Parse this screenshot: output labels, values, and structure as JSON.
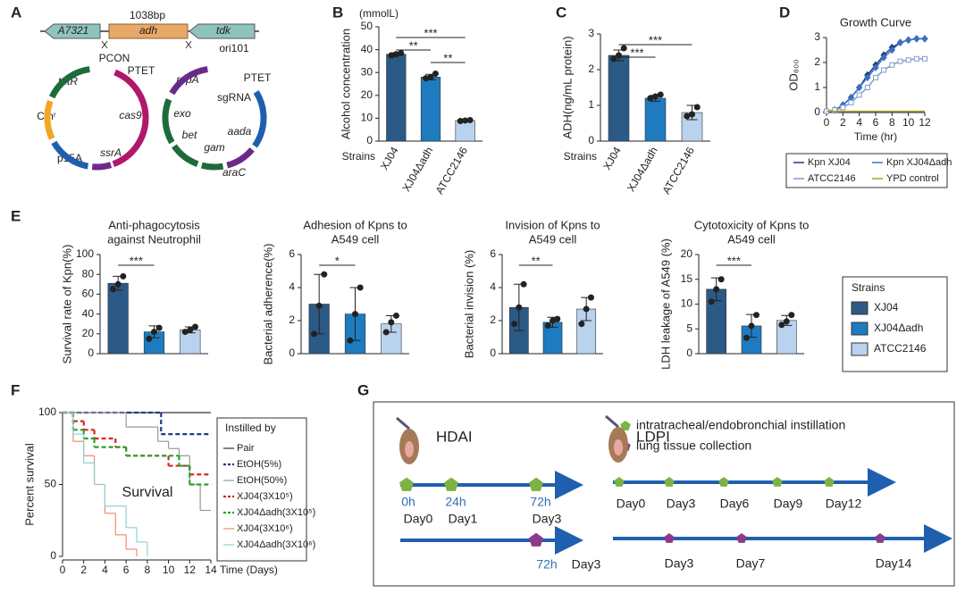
{
  "panel_labels": [
    "A",
    "B",
    "C",
    "D",
    "E",
    "F",
    "G"
  ],
  "panel_a": {
    "size": "1038bp",
    "genes": [
      "A7321",
      "adh",
      "tdk"
    ],
    "plasmid_1": [
      "PCON",
      "PTET",
      "tetR",
      "Cmʳ",
      "cas9",
      "p15A",
      "ssrA"
    ],
    "plasmid_2": [
      "ori101",
      "repA",
      "PTET",
      "sgRNA",
      "exo",
      "aada",
      "bet",
      "gam",
      "araC"
    ]
  },
  "chart_data": [
    {
      "type": "bar",
      "unit_label": "(mmolL)",
      "ylabel": "Alcohol concentration",
      "xlabel": "Strains",
      "categories": [
        "XJ04",
        "XJ04Δadh",
        "ATCC2146"
      ],
      "values": [
        38,
        28,
        9
      ],
      "errors": [
        0.6,
        1.2,
        0.3
      ],
      "points": [
        [
          37.5,
          38,
          38.5
        ],
        [
          27.5,
          28,
          29.5
        ],
        [
          8.8,
          9,
          9.2
        ]
      ],
      "colors": [
        "#2b5a87",
        "#1e7bbf",
        "#b9d3ee"
      ],
      "ylim": [
        0,
        50
      ],
      "yticks": [
        0,
        10,
        20,
        30,
        40,
        50
      ],
      "comparisons": [
        {
          "from": "XJ04",
          "to": "ATCC2146",
          "label": "***"
        },
        {
          "from": "XJ04",
          "to": "XJ04Δadh",
          "label": "**"
        },
        {
          "from": "XJ04Δadh",
          "to": "ATCC2146",
          "label": "**"
        }
      ]
    },
    {
      "type": "bar",
      "ylabel": "ADH(ng/mL protein)",
      "xlabel": "Strains",
      "categories": [
        "XJ04",
        "XJ04Δadh",
        "ATCC2146"
      ],
      "values": [
        2.4,
        1.2,
        0.8
      ],
      "errors": [
        0.15,
        0.08,
        0.2
      ],
      "points": [
        [
          2.3,
          2.4,
          2.6
        ],
        [
          1.2,
          1.25,
          1.3
        ],
        [
          0.7,
          0.75,
          0.95
        ]
      ],
      "colors": [
        "#2b5a87",
        "#1e7bbf",
        "#b9d3ee"
      ],
      "ylim": [
        0,
        3
      ],
      "yticks": [
        0,
        1,
        2,
        3
      ],
      "comparisons": [
        {
          "from": "XJ04",
          "to": "ATCC2146",
          "label": "***"
        },
        {
          "from": "XJ04",
          "to": "XJ04Δadh",
          "label": "***"
        }
      ]
    },
    {
      "type": "line",
      "title": "Growth Curve",
      "ylabel": "OD₆₀₀",
      "xlabel": "Time (hr)",
      "x": [
        0,
        1,
        2,
        3,
        4,
        5,
        6,
        7,
        8,
        9,
        10,
        11,
        12
      ],
      "xlim": [
        0,
        12
      ],
      "xticks": [
        0,
        2,
        4,
        6,
        8,
        10,
        12
      ],
      "ylim": [
        0,
        3
      ],
      "yticks": [
        0,
        1,
        2,
        3
      ],
      "series": [
        {
          "name": "Kpn XJ04",
          "color": "#1f3a7a",
          "marker": "diamond",
          "values": [
            0.05,
            0.1,
            0.3,
            0.6,
            1.0,
            1.5,
            1.9,
            2.3,
            2.6,
            2.8,
            2.9,
            2.95,
            2.95
          ]
        },
        {
          "name": "Kpn XJ04Δadh",
          "color": "#3d6fc0",
          "marker": "diamond",
          "values": [
            0.05,
            0.1,
            0.3,
            0.6,
            1.0,
            1.4,
            1.8,
            2.2,
            2.5,
            2.8,
            2.9,
            2.95,
            2.95
          ]
        },
        {
          "name": "ATCC2146",
          "color": "#7f9ccf",
          "marker": "square",
          "values": [
            0.05,
            0.1,
            0.2,
            0.4,
            0.7,
            1.0,
            1.4,
            1.7,
            1.9,
            2.05,
            2.1,
            2.15,
            2.15
          ]
        },
        {
          "name": "YPD control",
          "color": "#a8a020",
          "marker": "none",
          "values": [
            0.05,
            0.05,
            0.05,
            0.05,
            0.05,
            0.05,
            0.05,
            0.05,
            0.05,
            0.05,
            0.05,
            0.05,
            0.05
          ]
        }
      ]
    },
    {
      "type": "bar",
      "title": [
        "Anti-phagocytosis",
        "against Neutrophil"
      ],
      "ylabel": "Survival rate of Kpn(%)",
      "values": [
        71,
        22,
        24
      ],
      "errors": [
        7,
        6,
        3
      ],
      "points": [
        [
          65,
          70,
          78
        ],
        [
          15,
          22,
          26
        ],
        [
          22,
          24,
          27
        ]
      ],
      "ylim": [
        0,
        100
      ],
      "yticks": [
        0,
        20,
        40,
        60,
        80,
        100
      ],
      "comparisons": [
        {
          "from": "XJ04",
          "to": "XJ04Δadh",
          "label": "***"
        }
      ]
    },
    {
      "type": "bar",
      "title": [
        "Adhesion of Kpns to",
        "A549 cell"
      ],
      "ylabel": "Bacterial adherence(%)",
      "values": [
        3.0,
        2.4,
        1.8
      ],
      "errors": [
        1.8,
        1.6,
        0.5
      ],
      "points": [
        [
          1.2,
          2.9,
          4.8
        ],
        [
          0.8,
          2.4,
          4.0
        ],
        [
          1.3,
          1.9,
          2.3
        ]
      ],
      "ylim": [
        0,
        6
      ],
      "yticks": [
        0,
        2,
        4,
        6
      ],
      "comparisons": [
        {
          "from": "XJ04",
          "to": "XJ04Δadh",
          "label": "*"
        }
      ]
    },
    {
      "type": "bar",
      "title": [
        "Invision of Kpns to",
        "A549 cell"
      ],
      "ylabel": "Bacterial invision (%)",
      "values": [
        2.8,
        1.9,
        2.7
      ],
      "errors": [
        1.4,
        0.3,
        0.7
      ],
      "points": [
        [
          1.8,
          2.8,
          4.2
        ],
        [
          1.7,
          2.0,
          2.1
        ],
        [
          1.8,
          2.7,
          3.4
        ]
      ],
      "ylim": [
        0,
        6
      ],
      "yticks": [
        0,
        2,
        4,
        6
      ],
      "comparisons": [
        {
          "from": "XJ04",
          "to": "XJ04Δadh",
          "label": "**"
        }
      ]
    },
    {
      "type": "bar",
      "title": [
        "Cytotoxicity of Kpns to",
        "A549 cell"
      ],
      "ylabel": "LDH leakage of A549 (%)",
      "values": [
        13,
        5.6,
        6.7
      ],
      "errors": [
        2.3,
        2.3,
        1.0
      ],
      "points": [
        [
          10.5,
          13,
          15
        ],
        [
          3.2,
          5.6,
          7.8
        ],
        [
          5.8,
          6.5,
          7.8
        ]
      ],
      "ylim": [
        0,
        20
      ],
      "yticks": [
        0,
        5,
        10,
        15,
        20
      ],
      "comparisons": [
        {
          "from": "XJ04",
          "to": "XJ04Δadh",
          "label": "***"
        }
      ]
    },
    {
      "type": "step",
      "ylabel": "Percent survival",
      "xlabel": "Time (Days)",
      "annotation": "Survival",
      "legend_title": "Instilled by",
      "xlim": [
        0,
        14
      ],
      "xticks": [
        0,
        2,
        4,
        6,
        8,
        10,
        12,
        14
      ],
      "ylim": [
        0,
        100
      ],
      "yticks": [
        0,
        50,
        100
      ],
      "series": [
        {
          "name": "Pair",
          "color": "#333333",
          "dash": false,
          "x": [
            0,
            14
          ],
          "values": [
            100,
            100
          ]
        },
        {
          "name": "EtOH(5%)",
          "color": "#1f3a8a",
          "dash": true,
          "x": [
            0,
            9.3,
            14
          ],
          "values": [
            100,
            85,
            85
          ]
        },
        {
          "name": "EtOH(50%)",
          "color": "#999999",
          "dash": false,
          "x": [
            0,
            6,
            9,
            10,
            11,
            12,
            13,
            14
          ],
          "values": [
            100,
            90,
            80,
            75,
            70,
            50,
            32,
            32
          ]
        },
        {
          "name": "XJ04(3X10⁵)",
          "color": "#d62728",
          "dash": true,
          "x": [
            0,
            1,
            2,
            3,
            5,
            6,
            10,
            12,
            14
          ],
          "values": [
            100,
            94,
            88,
            82,
            76,
            70,
            63,
            57,
            57
          ]
        },
        {
          "name": "XJ04Δadh(3X10⁵)",
          "color": "#2ca02c",
          "dash": true,
          "x": [
            0,
            1,
            2,
            3,
            6,
            11,
            12,
            14
          ],
          "values": [
            100,
            88,
            82,
            76,
            70,
            63,
            50,
            50
          ]
        },
        {
          "name": "XJ04(3X10⁶)",
          "color": "#f08a70",
          "dash": false,
          "x": [
            0,
            1,
            2,
            3,
            4,
            5,
            6,
            7
          ],
          "values": [
            100,
            80,
            70,
            50,
            30,
            15,
            5,
            0
          ]
        },
        {
          "name": "XJ04Δadh(3X10⁶)",
          "color": "#8fd0d8",
          "dash": false,
          "x": [
            0,
            1,
            2,
            3,
            4,
            6,
            7,
            8
          ],
          "values": [
            100,
            85,
            65,
            50,
            35,
            20,
            10,
            0
          ]
        }
      ]
    }
  ],
  "panel_e_legend": {
    "title": "Strains",
    "items": [
      {
        "name": "XJ04",
        "color": "#2b5a87"
      },
      {
        "name": "XJ04Δadh",
        "color": "#1e7bbf"
      },
      {
        "name": "ATCC2146",
        "color": "#b9d3ee"
      }
    ]
  },
  "panel_g": {
    "legend": [
      "intratracheal/endobronchial instillation",
      "lung tissue collection"
    ],
    "hdai": {
      "name": "HDAI",
      "hours": [
        "0h",
        "24h",
        "72h"
      ],
      "days": [
        "Day0",
        "Day1",
        "Day3"
      ],
      "collection_hour": "72h",
      "collection_day": "Day3"
    },
    "ldpi": {
      "name": "LDPI",
      "days": [
        "Day0",
        "Day3",
        "Day6",
        "Day9",
        "Day12"
      ],
      "collection_days": [
        "Day3",
        "Day7",
        "Day14"
      ]
    }
  }
}
